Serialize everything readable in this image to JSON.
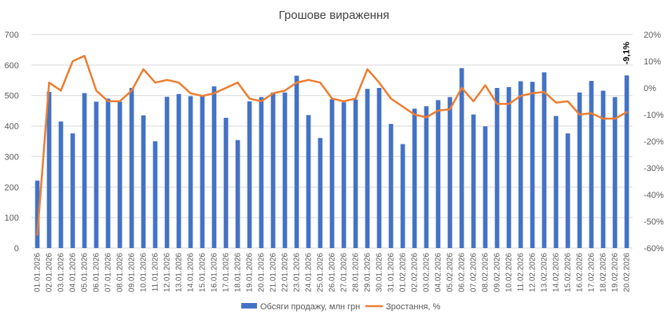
{
  "chart_data": {
    "type": "bar",
    "title": "Грошове вираження",
    "categories": [
      "01.01.2026",
      "02.01.2026",
      "03.01.2026",
      "04.01.2026",
      "05.01.2026",
      "06.01.2026",
      "07.01.2026",
      "08.01.2026",
      "09.01.2026",
      "10.01.2026",
      "11.01.2026",
      "12.01.2026",
      "13.01.2026",
      "14.01.2026",
      "15.01.2026",
      "16.01.2026",
      "17.01.2026",
      "18.01.2026",
      "19.01.2026",
      "20.01.2026",
      "21.01.2026",
      "22.01.2026",
      "23.01.2026",
      "24.01.2026",
      "25.01.2026",
      "26.01.2026",
      "27.01.2026",
      "28.01.2026",
      "29.01.2026",
      "30.01.2026",
      "31.01.2026",
      "01.02.2026",
      "02.02.2026",
      "03.02.2026",
      "04.02.2026",
      "05.02.2026",
      "06.02.2026",
      "07.02.2026",
      "08.02.2026",
      "09.02.2026",
      "10.02.2026",
      "11.02.2026",
      "12.02.2026",
      "13.02.2026",
      "14.02.2026",
      "15.02.2026",
      "16.02.2026",
      "17.02.2026",
      "18.02.2026",
      "19.02.2026",
      "20.02.2026"
    ],
    "series": [
      {
        "name": "Обсяги продажу, млн грн",
        "type": "bar",
        "axis": "left",
        "color": "#4472C4",
        "values": [
          221,
          512,
          415,
          376,
          508,
          480,
          490,
          480,
          525,
          435,
          350,
          496,
          505,
          498,
          500,
          530,
          427,
          354,
          481,
          495,
          510,
          510,
          565,
          436,
          361,
          488,
          478,
          487,
          522,
          525,
          407,
          341,
          457,
          465,
          485,
          495,
          590,
          438,
          399,
          525,
          528,
          547,
          545,
          576,
          433,
          376,
          510,
          548,
          516,
          495,
          566
        ]
      },
      {
        "name": "Зростання, %",
        "type": "line",
        "axis": "right",
        "color": "#ED7D31",
        "values": [
          -55,
          2,
          -1,
          10,
          12,
          -1,
          -5,
          -5,
          -1,
          7,
          2,
          3,
          2,
          -2,
          -3,
          -2,
          0,
          2,
          -4,
          -5,
          -2,
          -1,
          2,
          3,
          2,
          -4,
          -5,
          -4,
          7,
          2,
          -4,
          -7,
          -10,
          -11,
          -8.5,
          -8,
          0,
          -5,
          1,
          -6,
          -6,
          -3,
          -2,
          -1.5,
          -5.5,
          -5,
          -10,
          -9.5,
          -11.5,
          -11.5,
          -9.1
        ]
      }
    ],
    "y_left": {
      "ylim": [
        0,
        700
      ],
      "ticks": [
        0,
        100,
        200,
        300,
        400,
        500,
        600,
        700
      ]
    },
    "y_right": {
      "ylim": [
        -60,
        20
      ],
      "ticks": [
        -60,
        -50,
        -40,
        -30,
        -20,
        -10,
        0,
        10,
        20
      ],
      "format": "percent"
    },
    "annotations": [
      {
        "category": "20.02.2026",
        "series": "Зростання, %",
        "text": "-9,1%"
      }
    ],
    "grid": true,
    "legend": "bottom",
    "xlabel": "",
    "ylabel": ""
  }
}
